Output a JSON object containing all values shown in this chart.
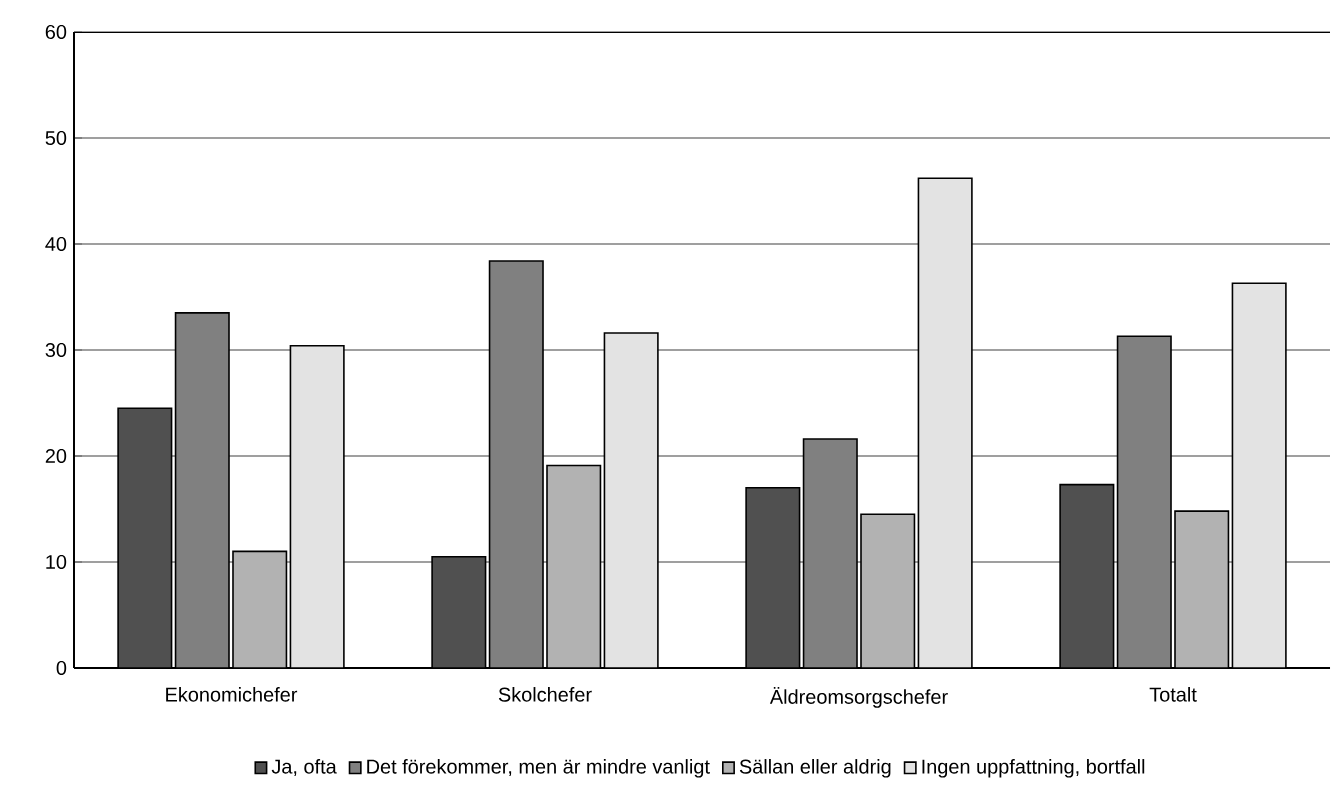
{
  "chart_data": {
    "type": "bar",
    "categories": [
      "Ekonomichefer",
      "Skolchefer",
      "Äldreomsorgschefer",
      "Totalt"
    ],
    "series": [
      {
        "name": "Ja, ofta",
        "color": "#505050",
        "values": [
          24.5,
          10.5,
          17.0,
          17.3
        ]
      },
      {
        "name": "Det förekommer, men är mindre vanligt",
        "color": "#808080",
        "values": [
          33.5,
          38.4,
          21.6,
          31.3
        ]
      },
      {
        "name": "Sällan eller aldrig",
        "color": "#b2b2b2",
        "values": [
          11.0,
          19.1,
          14.5,
          14.8
        ]
      },
      {
        "name": "Ingen uppfattning, bortfall",
        "color": "#e3e3e3",
        "values": [
          30.4,
          31.6,
          46.2,
          36.3
        ]
      }
    ],
    "ylim": [
      0,
      60
    ],
    "yticks": [
      0,
      10,
      20,
      30,
      40,
      50,
      60
    ],
    "grid": "y",
    "legend": "bottom"
  }
}
